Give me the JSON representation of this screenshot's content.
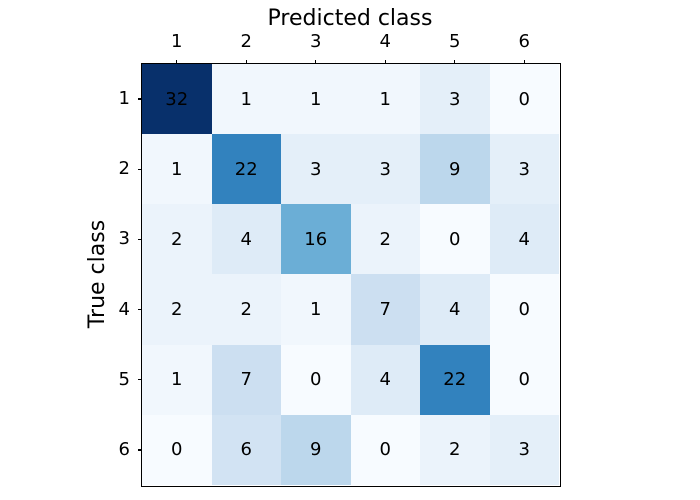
{
  "figure": {
    "background": "#ffffff"
  },
  "chart_data": {
    "type": "heatmap",
    "title": "",
    "xlabel": "Predicted class",
    "ylabel": "True class",
    "x_tick_labels": [
      "1",
      "2",
      "3",
      "4",
      "5",
      "6"
    ],
    "y_tick_labels": [
      "1",
      "2",
      "3",
      "4",
      "5",
      "6"
    ],
    "matrix": [
      [
        32,
        1,
        1,
        1,
        3,
        0
      ],
      [
        1,
        22,
        3,
        3,
        9,
        3
      ],
      [
        2,
        4,
        16,
        2,
        0,
        4
      ],
      [
        2,
        2,
        1,
        7,
        4,
        0
      ],
      [
        1,
        7,
        0,
        4,
        22,
        0
      ],
      [
        0,
        6,
        9,
        0,
        2,
        3
      ]
    ],
    "colormap": "Blues",
    "vmin": 0,
    "vmax": 32,
    "cell_text_color": "#000000",
    "axes_border_color": "#000000",
    "colormap_stops": [
      {
        "pos": 0.0,
        "hex": "#f7fbff"
      },
      {
        "pos": 0.125,
        "hex": "#deebf7"
      },
      {
        "pos": 0.25,
        "hex": "#c6dbef"
      },
      {
        "pos": 0.375,
        "hex": "#9ecae1"
      },
      {
        "pos": 0.5,
        "hex": "#6baed6"
      },
      {
        "pos": 0.625,
        "hex": "#4292c6"
      },
      {
        "pos": 0.75,
        "hex": "#2171b5"
      },
      {
        "pos": 0.875,
        "hex": "#08519c"
      },
      {
        "pos": 1.0,
        "hex": "#08306b"
      }
    ],
    "grid": false,
    "legend": false
  }
}
